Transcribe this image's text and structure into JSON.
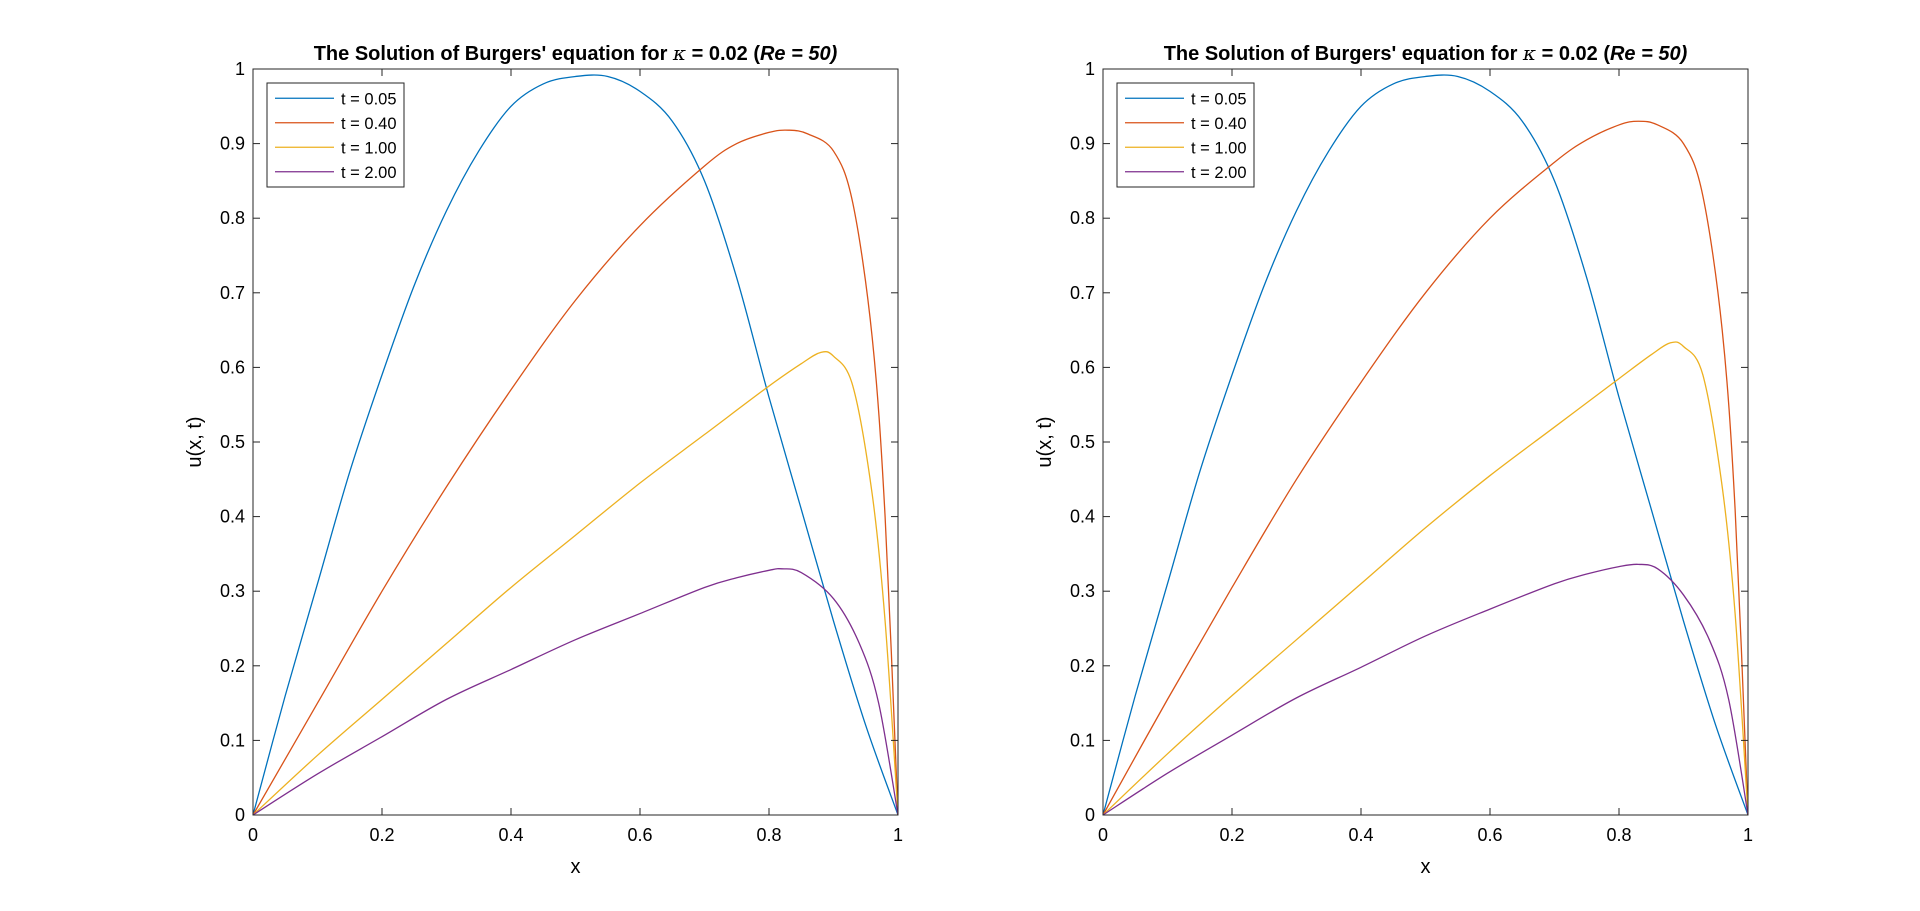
{
  "chart_data": [
    {
      "type": "line",
      "title": {
        "prefix": "The Solution of Burgers' equation for ",
        "symbol": "κ",
        "middle": " = 0.02 (",
        "re": "Re = 50",
        "suffix": ")"
      },
      "xlabel": "x",
      "ylabel": "u(x, t)",
      "xlim": [
        0,
        1
      ],
      "ylim": [
        0,
        1
      ],
      "xticks": [
        "0",
        "0.2",
        "0.4",
        "0.6",
        "0.8",
        "1"
      ],
      "yticks": [
        "0",
        "0.1",
        "0.2",
        "0.3",
        "0.4",
        "0.5",
        "0.6",
        "0.7",
        "0.8",
        "0.9",
        "1"
      ],
      "grid": false,
      "legend_position": "top-left",
      "series": [
        {
          "name": "t = 0.05",
          "color": "#0072BD",
          "x": [
            0,
            0.05,
            0.1,
            0.15,
            0.2,
            0.25,
            0.3,
            0.35,
            0.4,
            0.45,
            0.5,
            0.55,
            0.6,
            0.65,
            0.7,
            0.75,
            0.8,
            0.85,
            0.9,
            0.95,
            1
          ],
          "y": [
            0,
            0.16,
            0.31,
            0.46,
            0.59,
            0.71,
            0.81,
            0.89,
            0.95,
            0.98,
            0.99,
            0.99,
            0.97,
            0.93,
            0.85,
            0.72,
            0.56,
            0.41,
            0.26,
            0.12,
            0
          ]
        },
        {
          "name": "t = 0.40",
          "color": "#D95319",
          "x": [
            0,
            0.1,
            0.2,
            0.3,
            0.4,
            0.5,
            0.6,
            0.7,
            0.75,
            0.8,
            0.83,
            0.86,
            0.9,
            0.93,
            0.96,
            0.98,
            1
          ],
          "y": [
            0,
            0.15,
            0.3,
            0.44,
            0.57,
            0.69,
            0.79,
            0.87,
            0.9,
            0.915,
            0.918,
            0.913,
            0.89,
            0.82,
            0.64,
            0.4,
            0
          ]
        },
        {
          "name": "t = 1.00",
          "color": "#EDB120",
          "x": [
            0,
            0.1,
            0.2,
            0.3,
            0.4,
            0.5,
            0.6,
            0.7,
            0.8,
            0.85,
            0.88,
            0.9,
            0.93,
            0.96,
            0.98,
            1
          ],
          "y": [
            0,
            0.08,
            0.155,
            0.23,
            0.305,
            0.375,
            0.445,
            0.51,
            0.575,
            0.605,
            0.62,
            0.615,
            0.575,
            0.43,
            0.26,
            0
          ]
        },
        {
          "name": "t = 2.00",
          "color": "#7E2F8E",
          "x": [
            0,
            0.1,
            0.2,
            0.3,
            0.4,
            0.5,
            0.6,
            0.7,
            0.75,
            0.8,
            0.82,
            0.85,
            0.9,
            0.94,
            0.97,
            1
          ],
          "y": [
            0,
            0.055,
            0.105,
            0.155,
            0.195,
            0.235,
            0.27,
            0.305,
            0.318,
            0.328,
            0.33,
            0.325,
            0.29,
            0.23,
            0.15,
            0
          ]
        }
      ]
    },
    {
      "type": "line",
      "title": {
        "prefix": "The Solution of Burgers' equation for ",
        "symbol": "κ",
        "middle": " = 0.02 (",
        "re": "Re = 50",
        "suffix": ")"
      },
      "xlabel": "x",
      "ylabel": "u(x, t)",
      "xlim": [
        0,
        1
      ],
      "ylim": [
        0,
        1
      ],
      "xticks": [
        "0",
        "0.2",
        "0.4",
        "0.6",
        "0.8",
        "1"
      ],
      "yticks": [
        "0",
        "0.1",
        "0.2",
        "0.3",
        "0.4",
        "0.5",
        "0.6",
        "0.7",
        "0.8",
        "0.9",
        "1"
      ],
      "grid": false,
      "legend_position": "top-left",
      "series": [
        {
          "name": "t = 0.05",
          "color": "#0072BD",
          "x": [
            0,
            0.05,
            0.1,
            0.15,
            0.2,
            0.25,
            0.3,
            0.35,
            0.4,
            0.45,
            0.5,
            0.55,
            0.6,
            0.65,
            0.7,
            0.75,
            0.8,
            0.85,
            0.9,
            0.95,
            1
          ],
          "y": [
            0,
            0.16,
            0.31,
            0.46,
            0.59,
            0.71,
            0.81,
            0.89,
            0.95,
            0.98,
            0.99,
            0.99,
            0.97,
            0.93,
            0.85,
            0.72,
            0.56,
            0.41,
            0.26,
            0.12,
            0
          ]
        },
        {
          "name": "t = 0.40",
          "color": "#D95319",
          "x": [
            0,
            0.1,
            0.2,
            0.3,
            0.4,
            0.5,
            0.6,
            0.7,
            0.75,
            0.8,
            0.83,
            0.86,
            0.9,
            0.93,
            0.96,
            0.98,
            1
          ],
          "y": [
            0,
            0.155,
            0.305,
            0.45,
            0.58,
            0.7,
            0.8,
            0.875,
            0.905,
            0.925,
            0.93,
            0.925,
            0.9,
            0.83,
            0.65,
            0.41,
            0
          ]
        },
        {
          "name": "t = 1.00",
          "color": "#EDB120",
          "x": [
            0,
            0.1,
            0.2,
            0.3,
            0.4,
            0.5,
            0.6,
            0.7,
            0.8,
            0.85,
            0.88,
            0.9,
            0.93,
            0.96,
            0.98,
            1
          ],
          "y": [
            0,
            0.082,
            0.16,
            0.235,
            0.31,
            0.385,
            0.455,
            0.52,
            0.585,
            0.617,
            0.633,
            0.628,
            0.59,
            0.44,
            0.27,
            0
          ]
        },
        {
          "name": "t = 2.00",
          "color": "#7E2F8E",
          "x": [
            0,
            0.1,
            0.2,
            0.3,
            0.4,
            0.5,
            0.6,
            0.7,
            0.75,
            0.8,
            0.83,
            0.86,
            0.9,
            0.94,
            0.97,
            1
          ],
          "y": [
            0,
            0.056,
            0.107,
            0.157,
            0.198,
            0.24,
            0.276,
            0.31,
            0.323,
            0.333,
            0.336,
            0.33,
            0.295,
            0.235,
            0.155,
            0
          ]
        }
      ]
    }
  ]
}
